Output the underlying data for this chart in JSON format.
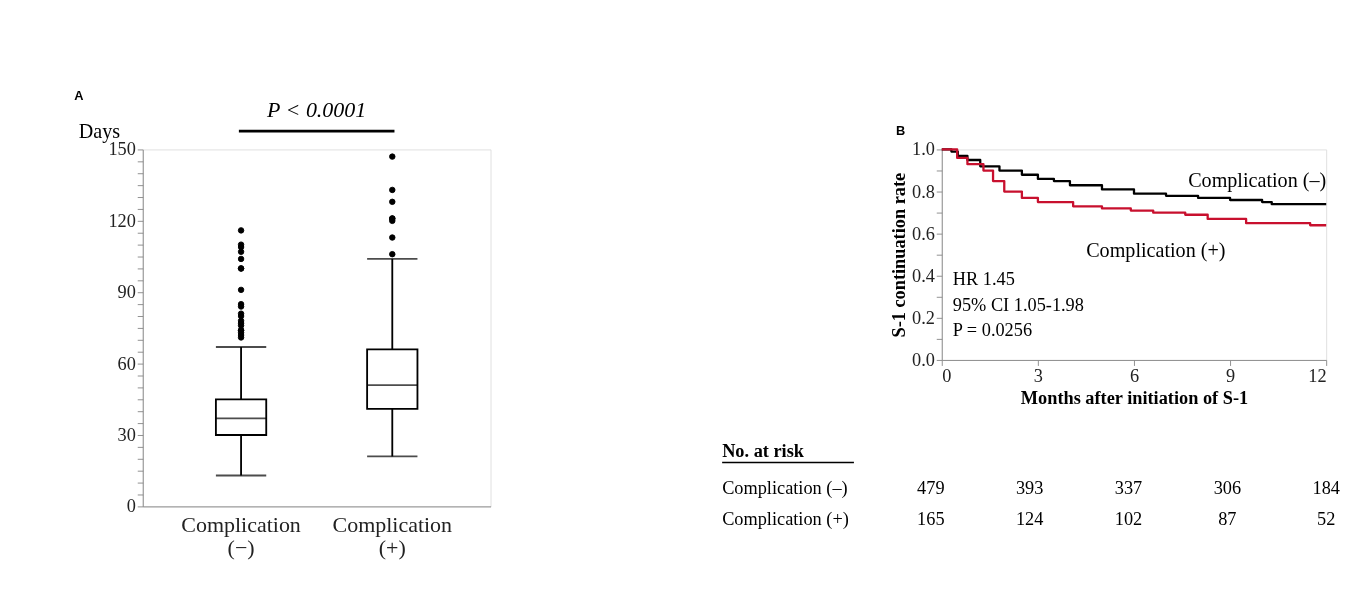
{
  "chart_data": [
    {
      "type": "box",
      "title": "A",
      "ylabel": "Days",
      "categories": [
        "Complication (−)",
        "Complication (+)"
      ],
      "boxes": [
        {
          "low": 13,
          "q1": 30,
          "median": 37,
          "q3": 45,
          "high": 67,
          "outliers": [
            116,
            110,
            109,
            107,
            104,
            100,
            100,
            91,
            85,
            84,
            81,
            80,
            78,
            77,
            76,
            74,
            74,
            73,
            72,
            71
          ]
        },
        {
          "low": 21,
          "q1": 41,
          "median": 51,
          "q3": 66,
          "high": 104,
          "outliers": [
            147,
            133,
            128,
            121,
            121,
            120,
            113,
            106
          ]
        }
      ],
      "color": "#000000",
      "ylim": [
        0,
        150
      ],
      "yticks": [
        0,
        {
          "value": 5,
          "label": null
        },
        {
          "value": 10,
          "label": null
        },
        {
          "value": 15,
          "label": null
        },
        {
          "value": 20,
          "label": null
        },
        {
          "value": 25,
          "label": null
        },
        30,
        {
          "value": 35,
          "label": null
        },
        {
          "value": 40,
          "label": null
        },
        {
          "value": 45,
          "label": null
        },
        {
          "value": 50,
          "label": null
        },
        {
          "value": 55,
          "label": null
        },
        60,
        {
          "value": 65,
          "label": null
        },
        {
          "value": 70,
          "label": null
        },
        {
          "value": 75,
          "label": null
        },
        {
          "value": 80,
          "label": null
        },
        {
          "value": 85,
          "label": null
        },
        90,
        {
          "value": 95,
          "label": null
        },
        {
          "value": 100,
          "label": null
        },
        {
          "value": 105,
          "label": null
        },
        {
          "value": 110,
          "label": null
        },
        {
          "value": 115,
          "label": null
        },
        120,
        {
          "value": 125,
          "label": null
        },
        {
          "value": 130,
          "label": null
        },
        {
          "value": 135,
          "label": null
        },
        {
          "value": 140,
          "label": null
        },
        {
          "value": 145,
          "label": null
        },
        150
      ],
      "grid": false,
      "annotations": [
        "P < 0.0001"
      ]
    },
    {
      "type": "step",
      "title": "B",
      "xlabel": "Months after initiation of S-1",
      "ylabel": "S-1 continuation rate",
      "series": [
        {
          "name": "Complication (–)",
          "color": "#000000",
          "x": [
            0,
            0.3,
            0.5,
            0.8,
            1.2,
            1.8,
            2.5,
            3,
            3.5,
            4,
            5,
            6,
            7,
            8,
            9,
            10,
            10.3,
            12
          ],
          "values": [
            1.0,
            0.99,
            0.97,
            0.95,
            0.92,
            0.9,
            0.88,
            0.86,
            0.85,
            0.83,
            0.81,
            0.79,
            0.78,
            0.77,
            0.76,
            0.75,
            0.74,
            0.74
          ]
        },
        {
          "name": "Complication (+)",
          "color": "#c8102e",
          "x": [
            0,
            0.48,
            0.8,
            1.3,
            1.6,
            1.95,
            2.5,
            3.0,
            4.1,
            5,
            5.9,
            6.6,
            7.6,
            8.3,
            9.5,
            11.5,
            12
          ],
          "values": [
            1.0,
            0.96,
            0.93,
            0.9,
            0.85,
            0.8,
            0.77,
            0.75,
            0.73,
            0.72,
            0.71,
            0.7,
            0.69,
            0.67,
            0.65,
            0.64,
            0.64
          ]
        }
      ],
      "xlim": [
        0,
        12
      ],
      "xticks": [
        0,
        3,
        6,
        9,
        12
      ],
      "ylim": [
        0,
        1
      ],
      "yticks": [
        {
          "value": 0,
          "label": "0.0"
        },
        {
          "value": 0.1,
          "label": null
        },
        0.2,
        {
          "value": 0.3,
          "label": null
        },
        0.4,
        {
          "value": 0.5,
          "label": null
        },
        0.6,
        {
          "value": 0.7,
          "label": null
        },
        0.8,
        {
          "value": 0.9,
          "label": null
        },
        {
          "value": 1,
          "label": "1.0"
        }
      ],
      "grid": false,
      "annotations": [
        "HR 1.45",
        "95% CI 1.05-1.98",
        "P = 0.0256",
        "No. at risk",
        "Complication (–)",
        "479",
        "393",
        "337",
        "306",
        "184",
        "Complication (+)",
        "165",
        "124",
        "102",
        "87",
        "52"
      ]
    }
  ]
}
